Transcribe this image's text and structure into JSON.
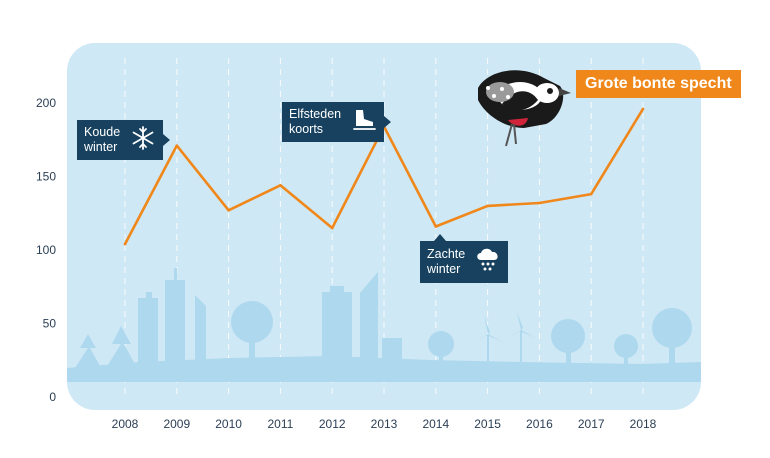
{
  "colors": {
    "panel": "#cfe8f5",
    "skyline": "#aed8ee",
    "line": "#f0871a",
    "callout": "#17415e",
    "tick": "#2b3f55"
  },
  "species_label": "Grote bonte specht",
  "annotations": [
    {
      "id": "koude",
      "text": "Koude\nwinter",
      "icon": "snowflake-icon",
      "year": 2009
    },
    {
      "id": "elfsteden",
      "text": "Elfsteden\nkoorts",
      "icon": "ice-skate-icon",
      "year": 2013
    },
    {
      "id": "zachte",
      "text": "Zachte\nwinter",
      "icon": "rain-cloud-icon",
      "year": 2014
    }
  ],
  "chart_data": {
    "type": "line",
    "title": "",
    "xlabel": "",
    "ylabel": "",
    "x": [
      2008,
      2009,
      2010,
      2011,
      2012,
      2013,
      2014,
      2015,
      2016,
      2017,
      2018
    ],
    "series": [
      {
        "name": "Grote bonte specht",
        "values": [
          104,
          171,
          127,
          144,
          115,
          184,
          116,
          130,
          132,
          138,
          196
        ]
      }
    ],
    "ylim": [
      0,
      230
    ],
    "yticks": [
      0,
      50,
      100,
      150,
      200
    ],
    "grid": "vertical-dashed",
    "legend": "top-right"
  }
}
